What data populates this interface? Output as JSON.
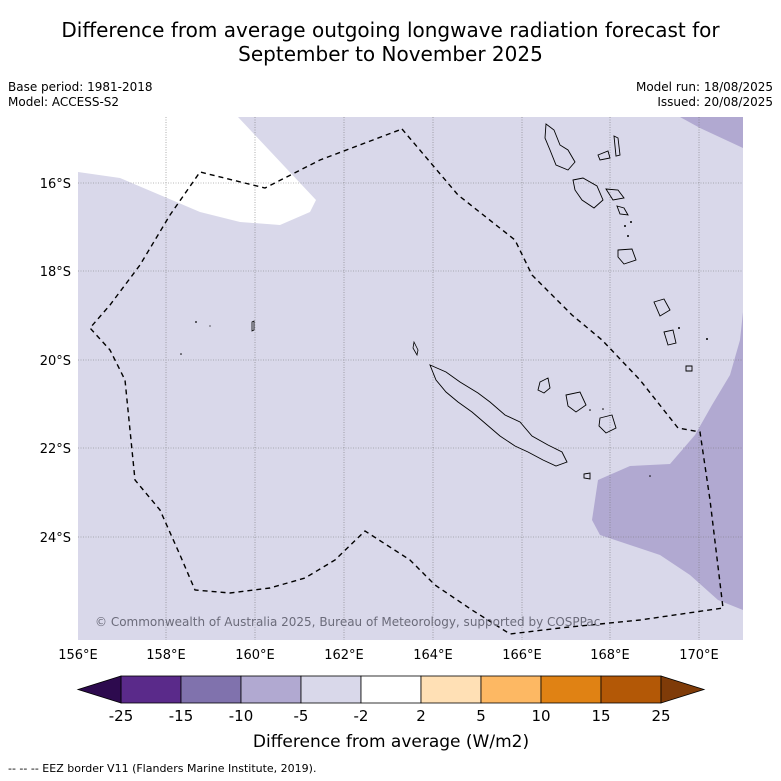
{
  "title_line1": "Difference from average outgoing longwave radiation forecast for",
  "title_line2": "September to November 2025",
  "meta_left": {
    "base_period": "Base period: 1981-2018",
    "model": "Model: ACCESS-S2"
  },
  "meta_right": {
    "model_run": "Model run: 18/08/2025",
    "issued": "Issued: 20/08/2025"
  },
  "map": {
    "lon_ticks": [
      "156°E",
      "158°E",
      "160°E",
      "162°E",
      "164°E",
      "166°E",
      "168°E",
      "170°E"
    ],
    "lat_ticks": [
      "16°S",
      "18°S",
      "20°S",
      "22°S",
      "24°S"
    ],
    "copyright": "© Commonwealth of Australia 2025, Bureau of Meteorology, supported by COSPPac"
  },
  "colorbar": {
    "labels": [
      "-25",
      "-15",
      "-10",
      "-5",
      "-2",
      "2",
      "5",
      "10",
      "15",
      "25"
    ],
    "colors": [
      "#5a2a8a",
      "#8072ad",
      "#b1a9d1",
      "#d9d8ea",
      "#ffffff",
      "#ffe0b5",
      "#fdb863",
      "#e08214",
      "#b35806"
    ],
    "under_color": "#2d0a4e",
    "over_color": "#7f3b08",
    "title": "Difference from average (W/m2)"
  },
  "legend_note": "--  --  -- EEZ border V11 (Flanders Marine Institute, 2019)."
}
